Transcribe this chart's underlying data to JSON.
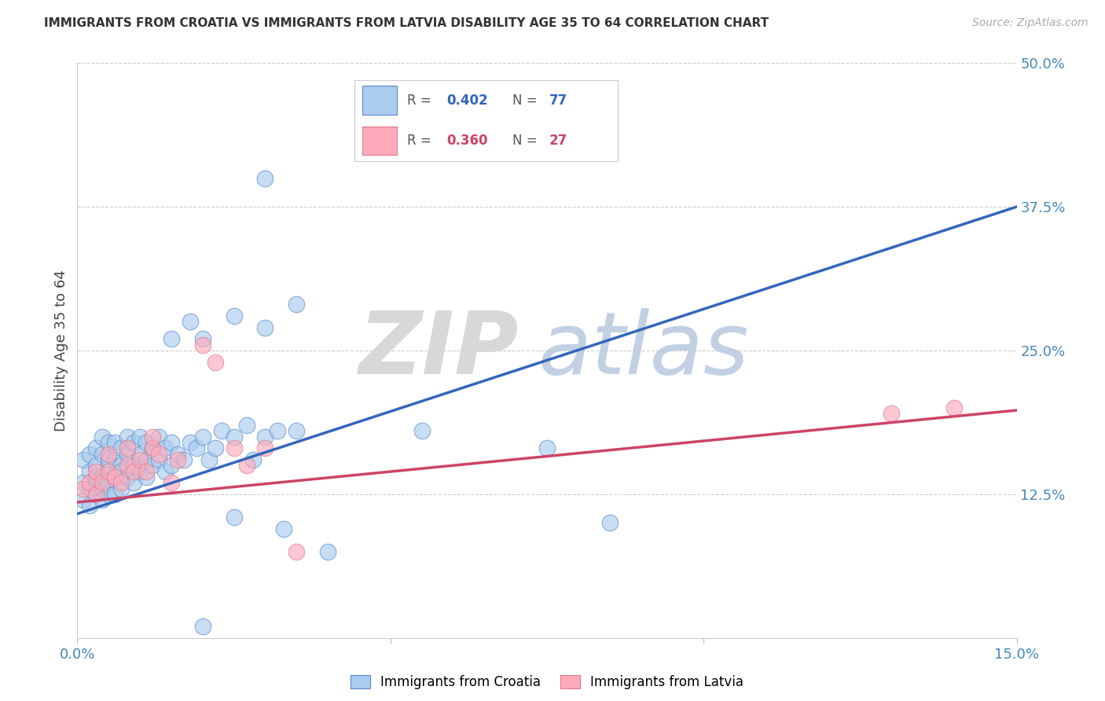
{
  "title": "IMMIGRANTS FROM CROATIA VS IMMIGRANTS FROM LATVIA DISABILITY AGE 35 TO 64 CORRELATION CHART",
  "source": "Source: ZipAtlas.com",
  "ylabel_label": "Disability Age 35 to 64",
  "xlim": [
    0.0,
    0.15
  ],
  "ylim": [
    0.0,
    0.5
  ],
  "xticks": [
    0.0,
    0.05,
    0.1,
    0.15
  ],
  "ytick_vals": [
    0.0,
    0.125,
    0.25,
    0.375,
    0.5
  ],
  "croatia_color": "#aaccee",
  "croatia_edge_color": "#5588cc",
  "croatia_line_color": "#3366bb",
  "latvia_color": "#ffaabb",
  "latvia_edge_color": "#dd7788",
  "latvia_line_color": "#cc4466",
  "croatia_R": 0.402,
  "croatia_N": 77,
  "latvia_R": 0.36,
  "latvia_N": 27,
  "background_color": "#ffffff",
  "grid_color": "#cccccc",
  "croatia_line_x0": 0.0,
  "croatia_line_y0": 0.108,
  "croatia_line_x1": 0.15,
  "croatia_line_y1": 0.375,
  "latvia_line_x0": 0.0,
  "latvia_line_y0": 0.118,
  "latvia_line_x1": 0.15,
  "latvia_line_y1": 0.198,
  "croatia_points_x": [
    0.001,
    0.001,
    0.001,
    0.002,
    0.002,
    0.002,
    0.002,
    0.003,
    0.003,
    0.003,
    0.003,
    0.004,
    0.004,
    0.004,
    0.004,
    0.004,
    0.005,
    0.005,
    0.005,
    0.005,
    0.005,
    0.006,
    0.006,
    0.006,
    0.006,
    0.007,
    0.007,
    0.007,
    0.007,
    0.008,
    0.008,
    0.008,
    0.009,
    0.009,
    0.009,
    0.01,
    0.01,
    0.01,
    0.011,
    0.011,
    0.011,
    0.012,
    0.012,
    0.013,
    0.013,
    0.014,
    0.014,
    0.015,
    0.015,
    0.016,
    0.017,
    0.018,
    0.019,
    0.02,
    0.021,
    0.022,
    0.023,
    0.025,
    0.027,
    0.028,
    0.03,
    0.032,
    0.035,
    0.015,
    0.018,
    0.02,
    0.025,
    0.03,
    0.035,
    0.04,
    0.03,
    0.075,
    0.085,
    0.025,
    0.033,
    0.02,
    0.055
  ],
  "croatia_points_y": [
    0.135,
    0.12,
    0.155,
    0.13,
    0.115,
    0.145,
    0.16,
    0.125,
    0.14,
    0.15,
    0.165,
    0.13,
    0.12,
    0.14,
    0.16,
    0.175,
    0.135,
    0.15,
    0.125,
    0.155,
    0.17,
    0.14,
    0.125,
    0.155,
    0.17,
    0.13,
    0.15,
    0.165,
    0.145,
    0.14,
    0.16,
    0.175,
    0.135,
    0.15,
    0.17,
    0.145,
    0.16,
    0.175,
    0.14,
    0.155,
    0.17,
    0.15,
    0.165,
    0.155,
    0.175,
    0.145,
    0.165,
    0.15,
    0.17,
    0.16,
    0.155,
    0.17,
    0.165,
    0.175,
    0.155,
    0.165,
    0.18,
    0.175,
    0.185,
    0.155,
    0.175,
    0.18,
    0.18,
    0.26,
    0.275,
    0.26,
    0.28,
    0.27,
    0.29,
    0.075,
    0.4,
    0.165,
    0.1,
    0.105,
    0.095,
    0.01,
    0.18
  ],
  "latvia_points_x": [
    0.001,
    0.002,
    0.003,
    0.003,
    0.004,
    0.005,
    0.005,
    0.006,
    0.007,
    0.008,
    0.008,
    0.009,
    0.01,
    0.011,
    0.012,
    0.012,
    0.013,
    0.015,
    0.016,
    0.02,
    0.022,
    0.025,
    0.027,
    0.03,
    0.035,
    0.13,
    0.14
  ],
  "latvia_points_y": [
    0.13,
    0.135,
    0.125,
    0.145,
    0.135,
    0.145,
    0.16,
    0.14,
    0.135,
    0.15,
    0.165,
    0.145,
    0.155,
    0.145,
    0.165,
    0.175,
    0.16,
    0.135,
    0.155,
    0.255,
    0.24,
    0.165,
    0.15,
    0.165,
    0.075,
    0.195,
    0.2
  ]
}
